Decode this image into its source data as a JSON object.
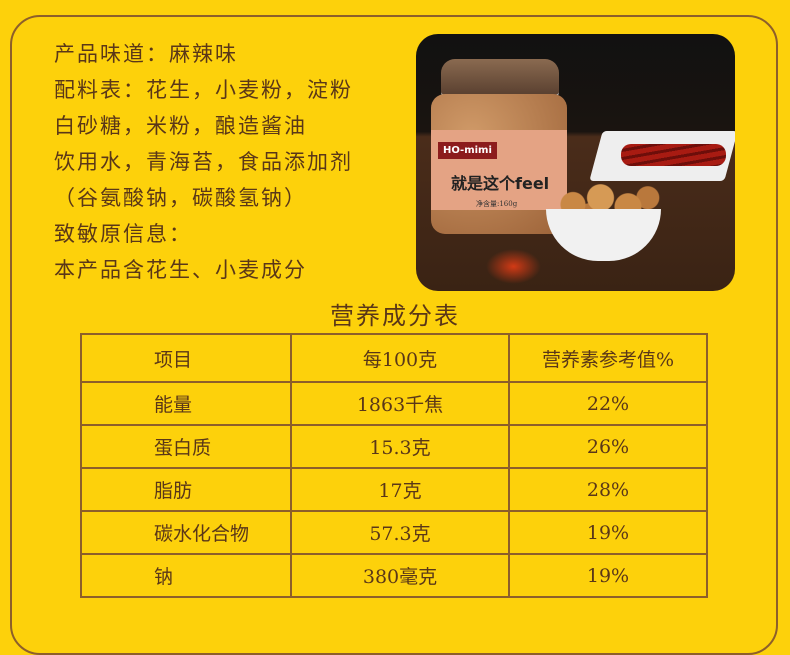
{
  "info": {
    "lines": [
      "产品味道：麻辣味",
      "配料表：花生，小麦粉，淀粉",
      "白砂糖，米粉，酿造酱油",
      "饮用水，青海苔，食品添加剂",
      "（谷氨酸钠，碳酸氢钠）",
      "致敏原信息：",
      "本产品含花生、小麦成分"
    ]
  },
  "photo": {
    "brand": "HO-mimi",
    "slogan": "就是这个feel",
    "net_weight": "净含量:160g"
  },
  "nutrition": {
    "title": "营养成分表",
    "headers": [
      "项目",
      "每100克",
      "营养素参考值%"
    ],
    "rows": [
      [
        "能量",
        "1863千焦",
        "22%"
      ],
      [
        "蛋白质",
        "15.3克",
        "26%"
      ],
      [
        "脂肪",
        "17克",
        "28%"
      ],
      [
        "碳水化合物",
        "57.3克",
        "19%"
      ],
      [
        "钠",
        "380毫克",
        "19%"
      ]
    ]
  },
  "colors": {
    "background": "#fdd10b",
    "text": "#5a3718",
    "border": "#8d5f2a"
  }
}
